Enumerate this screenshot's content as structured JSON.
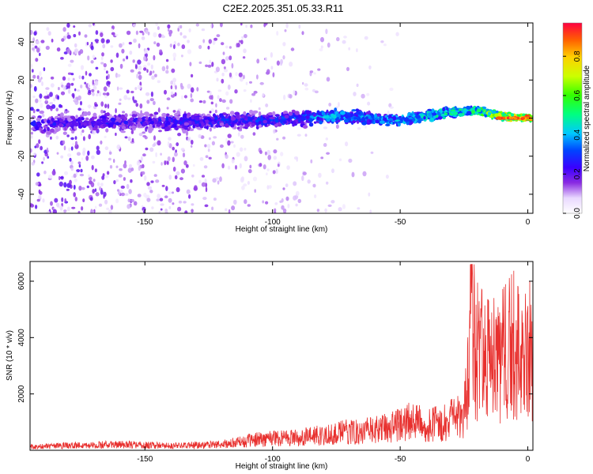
{
  "title": "C2E2.2025.351.05.33.R11",
  "colors": {
    "snr_line": "#e8302e",
    "frame": "#000000"
  },
  "chart_data": [
    {
      "type": "heatmap",
      "xlabel": "Height of straight line (km)",
      "ylabel": "Frequency (Hz)",
      "xlim": [
        -195,
        2
      ],
      "ylim": [
        -50,
        50
      ],
      "x_ticks": [
        -150,
        -100,
        -50,
        0
      ],
      "y_ticks": [
        -40,
        -20,
        0,
        20,
        40
      ],
      "colormap": "rainbow",
      "colorbar": {
        "label": "Normalized spectral amplitude",
        "range": [
          0,
          0.97
        ],
        "ticks": [
          0.0,
          0.2,
          0.4,
          0.6,
          0.8
        ]
      },
      "ridge": {
        "description": "bright narrow band near 0 Hz, brightest near 0 km",
        "x": [
          -190,
          -150,
          -100,
          -75,
          -50,
          -30,
          -20,
          -10,
          -5,
          0
        ],
        "freq": [
          -3,
          -2,
          -1,
          1,
          -1,
          3,
          4,
          1,
          0,
          0
        ],
        "amplitude": [
          0.3,
          0.3,
          0.35,
          0.45,
          0.45,
          0.55,
          0.6,
          0.8,
          0.85,
          0.95
        ]
      }
    },
    {
      "type": "line",
      "xlabel": "Height of straight line (km)",
      "ylabel": "SNR (10 * v/v)",
      "xlim": [
        -195,
        2
      ],
      "ylim": [
        0,
        6700
      ],
      "x_ticks": [
        -150,
        -100,
        -50,
        0
      ],
      "y_ticks": [
        2000,
        4000,
        6000
      ],
      "series": [
        {
          "x": [
            -195,
            -180,
            -160,
            -140,
            -120,
            -110,
            -100,
            -90,
            -80,
            -70,
            -60,
            -50,
            -45,
            -40,
            -30,
            -25,
            -22,
            -20,
            -15,
            -10,
            -5,
            0
          ],
          "y": [
            150,
            200,
            250,
            200,
            250,
            400,
            550,
            550,
            650,
            800,
            850,
            1100,
            1300,
            1000,
            1300,
            1500,
            4500,
            4000,
            3500,
            3800,
            4300,
            4000
          ]
        }
      ]
    }
  ]
}
